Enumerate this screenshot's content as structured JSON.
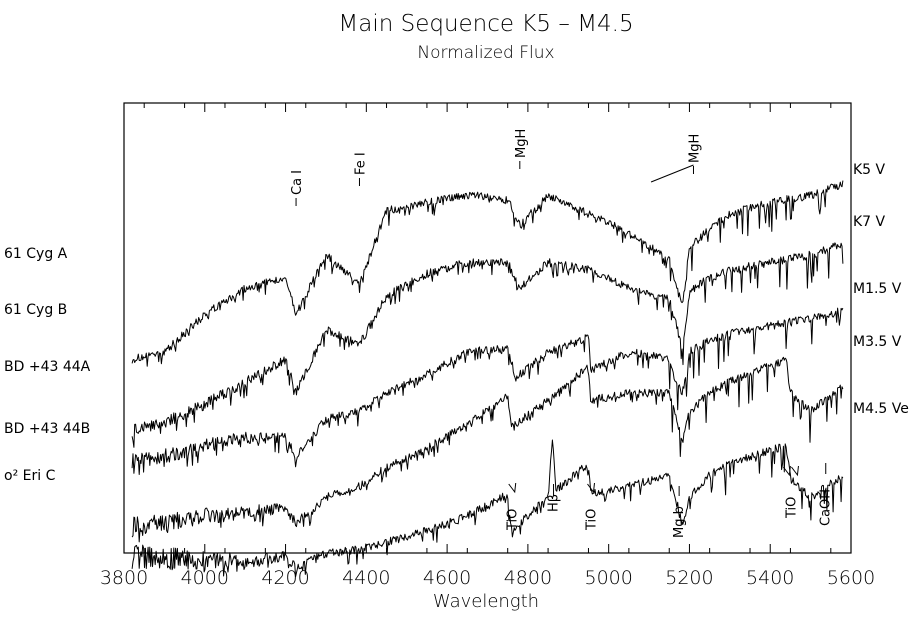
{
  "chart_data": {
    "type": "line",
    "title": "Main Sequence K5 – M4.5",
    "subtitle": "Normalized Flux",
    "xlabel": "Wavelength",
    "ylabel": "",
    "xlim": [
      3800,
      5600
    ],
    "x_ticks": [
      3800,
      4000,
      4200,
      4400,
      4600,
      4800,
      5000,
      5200,
      5400,
      5600
    ],
    "grid": false,
    "series": [
      {
        "name": "K5 V",
        "star": "61 Cyg A",
        "x": [
          3820,
          3900,
          4000,
          4100,
          4200,
          4226,
          4300,
          4383,
          4450,
          4550,
          4650,
          4750,
          4780,
          4850,
          4950,
          5050,
          5150,
          5170,
          5183,
          5200,
          5250,
          5300,
          5400,
          5500,
          5580
        ],
        "values": [
          0.36,
          0.38,
          0.48,
          0.55,
          0.58,
          0.48,
          0.64,
          0.56,
          0.76,
          0.78,
          0.8,
          0.79,
          0.72,
          0.8,
          0.75,
          0.7,
          0.63,
          0.55,
          0.5,
          0.66,
          0.71,
          0.75,
          0.78,
          0.8,
          0.83
        ]
      },
      {
        "name": "K7 V",
        "star": "61 Cyg B",
        "x": [
          3820,
          3900,
          4000,
          4100,
          4200,
          4226,
          4300,
          4383,
          4450,
          4550,
          4650,
          4750,
          4780,
          4850,
          4950,
          5050,
          5150,
          5170,
          5183,
          5200,
          5250,
          5300,
          5400,
          5500,
          5580
        ],
        "values": [
          0.17,
          0.19,
          0.24,
          0.3,
          0.36,
          0.27,
          0.44,
          0.4,
          0.53,
          0.59,
          0.62,
          0.62,
          0.55,
          0.62,
          0.6,
          0.55,
          0.52,
          0.44,
          0.38,
          0.54,
          0.58,
          0.6,
          0.62,
          0.64,
          0.67
        ]
      },
      {
        "name": "M1.5 V",
        "star": "BD +43 44A",
        "x": [
          3820,
          3900,
          4000,
          4100,
          4200,
          4226,
          4300,
          4383,
          4450,
          4550,
          4650,
          4750,
          4770,
          4850,
          4950,
          4955,
          5050,
          5150,
          5170,
          5183,
          5200,
          5250,
          5300,
          5400,
          5500,
          5580
        ],
        "values": [
          0.09,
          0.1,
          0.13,
          0.15,
          0.15,
          0.1,
          0.2,
          0.22,
          0.27,
          0.32,
          0.38,
          0.39,
          0.31,
          0.38,
          0.42,
          0.33,
          0.38,
          0.36,
          0.29,
          0.27,
          0.38,
          0.41,
          0.43,
          0.45,
          0.47,
          0.49
        ]
      },
      {
        "name": "M3.5 V",
        "star": "BD +43 44B",
        "x": [
          3820,
          3900,
          4000,
          4100,
          4200,
          4226,
          4300,
          4383,
          4450,
          4550,
          4650,
          4750,
          4760,
          4850,
          4950,
          4955,
          5050,
          5150,
          5170,
          5183,
          5200,
          5250,
          5300,
          5440,
          5450,
          5500,
          5580
        ],
        "values": [
          -0.09,
          -0.08,
          -0.06,
          -0.05,
          -0.04,
          -0.08,
          -0.01,
          0.02,
          0.07,
          0.12,
          0.19,
          0.26,
          0.18,
          0.25,
          0.34,
          0.25,
          0.27,
          0.27,
          0.19,
          0.14,
          0.22,
          0.27,
          0.3,
          0.36,
          0.27,
          0.22,
          0.29
        ]
      },
      {
        "name": "M4.5 Ve",
        "star": "ο² Eri C",
        "x": [
          3820,
          3900,
          4000,
          4100,
          4200,
          4226,
          4300,
          4383,
          4450,
          4550,
          4650,
          4750,
          4760,
          4850,
          4861,
          4870,
          4950,
          4955,
          5050,
          5150,
          5170,
          5183,
          5200,
          5250,
          5300,
          5440,
          5450,
          5500,
          5580
        ],
        "values": [
          -0.17,
          -0.17,
          -0.18,
          -0.18,
          -0.17,
          -0.2,
          -0.16,
          -0.15,
          -0.13,
          -0.1,
          -0.06,
          0.0,
          -0.1,
          -0.01,
          0.15,
          0.01,
          0.08,
          0.0,
          0.02,
          0.05,
          -0.03,
          -0.09,
          -0.01,
          0.05,
          0.08,
          0.13,
          0.04,
          -0.01,
          0.05
        ]
      }
    ],
    "line_labels_top": [
      {
        "text": "Ca I",
        "x": 4226
      },
      {
        "text": "Fe I",
        "x": 4383
      },
      {
        "text": "MgH",
        "x": 4780
      },
      {
        "text": "MgH",
        "x": 5210
      }
    ],
    "line_labels_bottom": [
      {
        "text": "TiO",
        "x": 4760
      },
      {
        "text": "Hβ",
        "x": 4861
      },
      {
        "text": "TiO",
        "x": 4955
      },
      {
        "text": "Mg b",
        "x": 5172
      },
      {
        "text": "TiO",
        "x": 5450
      },
      {
        "text": "CaOH",
        "x": 5535
      }
    ]
  }
}
